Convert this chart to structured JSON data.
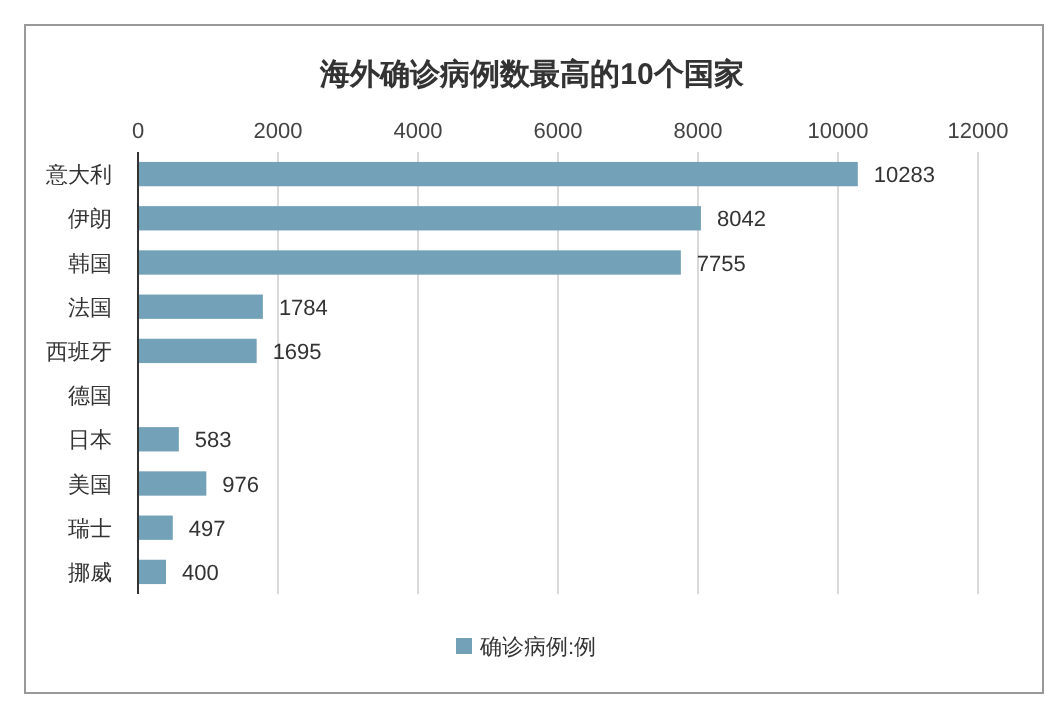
{
  "chart_data": {
    "type": "bar",
    "orientation": "horizontal",
    "title": "海外确诊病例数最高的10个国家",
    "categories": [
      "意大利",
      "伊朗",
      "韩国",
      "法国",
      "西班牙",
      "德国",
      "日本",
      "美国",
      "瑞士",
      "挪威"
    ],
    "series": [
      {
        "name": "确诊病例:例",
        "color": "#72a1b8",
        "values": [
          10283,
          8042,
          7755,
          1784,
          1695,
          null,
          583,
          976,
          497,
          400
        ]
      }
    ],
    "xlim": [
      0,
      12000
    ],
    "xticks": [
      0,
      2000,
      4000,
      6000,
      8000,
      10000,
      12000
    ],
    "grid": "x",
    "data_labels": true,
    "legend": "bottom"
  }
}
